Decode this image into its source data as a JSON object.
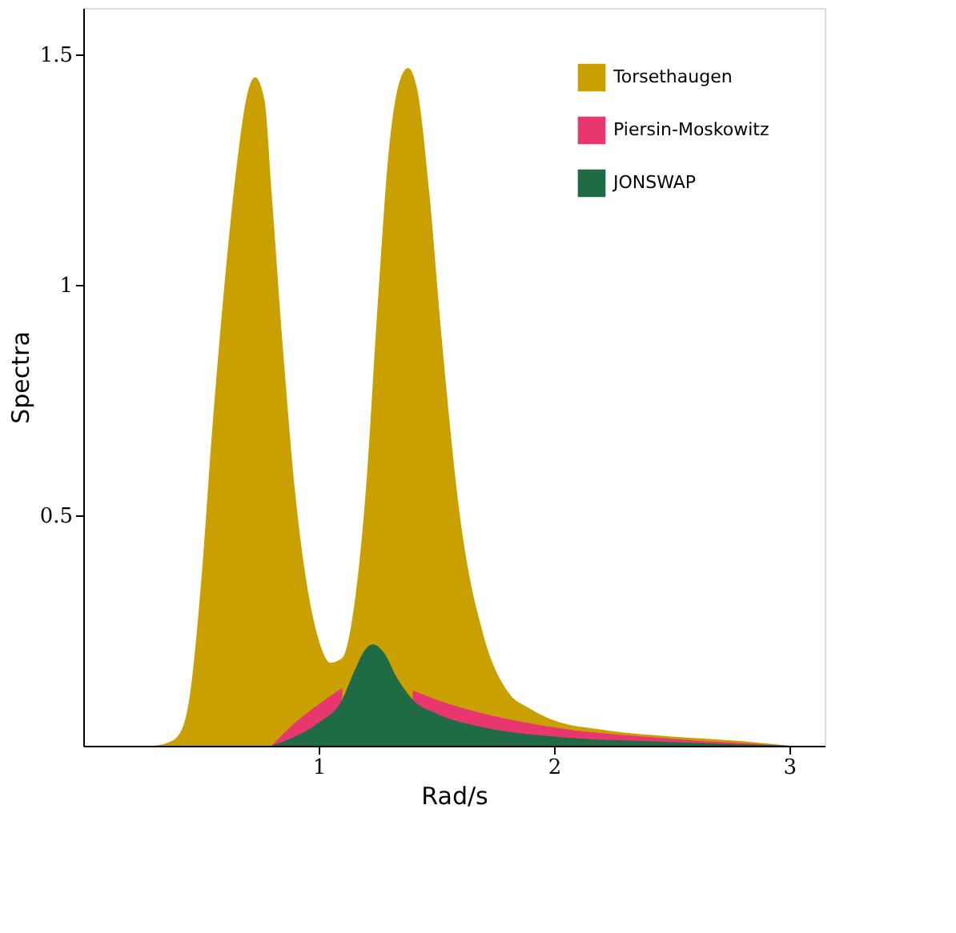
{
  "chart_data": {
    "type": "area",
    "xlabel": "Rad/s",
    "ylabel": "Spectra",
    "xlim": [
      0,
      3.15
    ],
    "ylim": [
      0,
      1.6
    ],
    "xticks": [
      1,
      2,
      3
    ],
    "yticks": [
      0.5,
      1,
      1.5
    ],
    "grid": false,
    "legend": "top right",
    "series": [
      {
        "name": "Torsethaugen",
        "color": "#c9a000",
        "x": [
          0.3,
          0.35,
          0.4,
          0.45,
          0.5,
          0.55,
          0.6,
          0.65,
          0.7,
          0.73,
          0.77,
          0.8,
          0.85,
          0.9,
          0.95,
          1.0,
          1.05,
          1.1,
          1.15,
          1.2,
          1.25,
          1.3,
          1.35,
          1.38,
          1.42,
          1.47,
          1.52,
          1.6,
          1.7,
          1.8,
          1.9,
          2.0,
          2.2,
          2.5,
          2.8,
          3.0
        ],
        "values": [
          0,
          0.005,
          0.02,
          0.1,
          0.35,
          0.7,
          1.0,
          1.25,
          1.42,
          1.45,
          1.4,
          1.2,
          0.85,
          0.55,
          0.35,
          0.23,
          0.18,
          0.19,
          0.3,
          0.55,
          0.95,
          1.3,
          1.45,
          1.47,
          1.42,
          1.2,
          0.9,
          0.5,
          0.24,
          0.12,
          0.08,
          0.055,
          0.035,
          0.02,
          0.01,
          0
        ]
      },
      {
        "name": "Piersin-Moskowitz",
        "color": "#e8366e",
        "x": [
          0.8,
          0.9,
          1.0,
          1.1,
          1.2,
          1.3,
          1.4,
          1.5,
          1.7,
          2.0,
          2.5,
          3.0
        ],
        "values": [
          0,
          0.05,
          0.09,
          0.125,
          null,
          null,
          0.12,
          0.1,
          0.07,
          0.04,
          0.015,
          0
        ]
      },
      {
        "name": "JONSWAP",
        "color": "#1e6b45",
        "x": [
          0.8,
          0.9,
          1.0,
          1.1,
          1.15,
          1.2,
          1.23,
          1.28,
          1.33,
          1.4,
          1.5,
          1.7,
          2.0,
          2.5,
          3.0
        ],
        "values": [
          0,
          0.02,
          0.05,
          0.1,
          0.16,
          0.21,
          0.22,
          0.2,
          0.15,
          0.1,
          0.07,
          0.04,
          0.02,
          0.008,
          0
        ]
      }
    ]
  }
}
